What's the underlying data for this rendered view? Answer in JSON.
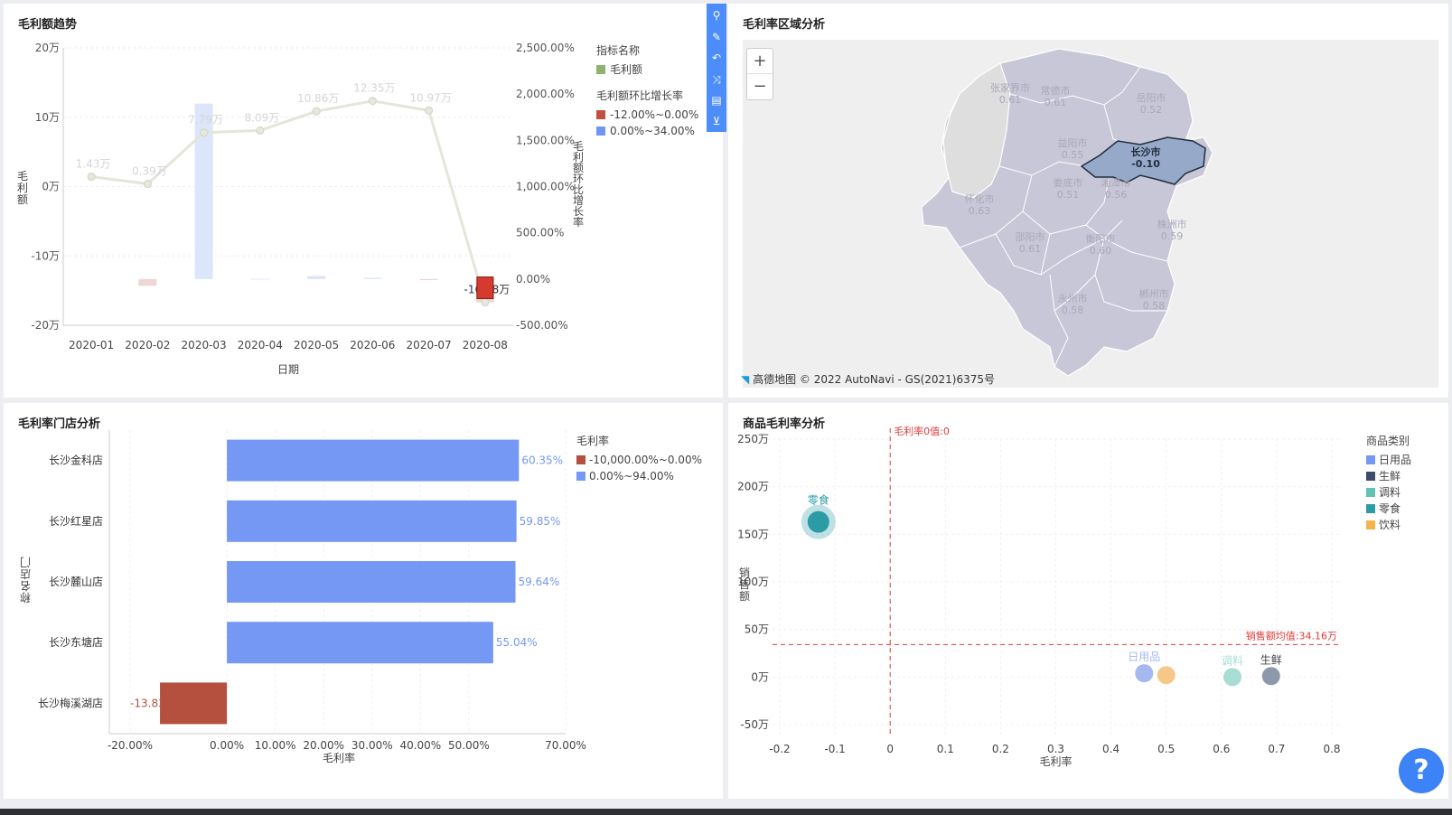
{
  "panels": {
    "gp_trend": {
      "title": "毛利额趋势"
    },
    "region": {
      "title": "毛利率区域分析"
    },
    "store": {
      "title": "毛利率门店分析"
    },
    "product": {
      "title": "商品毛利率分析"
    }
  },
  "toolbar": {
    "icons": [
      "link-off-icon",
      "edit-icon",
      "undo-icon",
      "shuffle-icon",
      "comment-icon",
      "collapse-icon"
    ]
  },
  "gp_chart": {
    "type": "bar+line",
    "xlabel": "日期",
    "ylabel_left": "毛利额",
    "ylabel_right": "毛利额环比增长率",
    "categories": [
      "2020-01",
      "2020-02",
      "2020-03",
      "2020-04",
      "2020-05",
      "2020-06",
      "2020-07",
      "2020-08"
    ],
    "gp_values": [
      1.43,
      0.39,
      7.79,
      8.09,
      10.86,
      12.35,
      10.97,
      -16.68
    ],
    "gp_labels": [
      "1.43万",
      "0.39万",
      "7.79万",
      "8.09万",
      "10.86万",
      "12.35万",
      "10.97万",
      "-16.68万"
    ],
    "growth_pct": [
      null,
      -72.7,
      1897.4,
      3.9,
      34.2,
      13.7,
      -11.2,
      -252.1
    ],
    "left_ticks": [
      "20万",
      "10万",
      "0万",
      "-10万",
      "-20万"
    ],
    "left_tick_values": [
      20,
      10,
      0,
      -10,
      -20
    ],
    "right_ticks": [
      "2,500.00%",
      "2,000.00%",
      "1,500.00%",
      "1,000.00%",
      "500.00%",
      "0.00%",
      "-500.00%"
    ],
    "right_tick_values": [
      2500,
      2000,
      1500,
      1000,
      500,
      0,
      -500
    ],
    "ylim_left": [
      -20,
      20
    ],
    "ylim_right": [
      -500,
      2500
    ],
    "legend_title": "指标名称",
    "legend_gp": "毛利额",
    "legend_growth_title": "毛利额环比增长率",
    "legend_neg": "-12.00%~0.00%",
    "legend_pos": "0.00%~34.00%",
    "colors": {
      "line": "#8db36f",
      "neg": "#c0503f",
      "pos": "#6f97f2"
    }
  },
  "map": {
    "zoom_in": "+",
    "zoom_out": "−",
    "attribution": "© 2022 AutoNavi - GS(2021)6375号",
    "brand": "高德地图",
    "cities": [
      {
        "name": "张家界市",
        "value": "0.61"
      },
      {
        "name": "常德市",
        "value": "0.61"
      },
      {
        "name": "岳阳市",
        "value": "0.52"
      },
      {
        "name": "益阳市",
        "value": "0.55"
      },
      {
        "name": "长沙市",
        "value": "-0.10"
      },
      {
        "name": "娄底市",
        "value": "0.51"
      },
      {
        "name": "湘潭市",
        "value": "0.56"
      },
      {
        "name": "怀化市",
        "value": "0.63"
      },
      {
        "name": "邵阳市",
        "value": "0.61"
      },
      {
        "name": "衡阳市",
        "value": "0.60"
      },
      {
        "name": "株洲市",
        "value": "0.59"
      },
      {
        "name": "永州市",
        "value": "0.58"
      },
      {
        "name": "郴州市",
        "value": "0.58"
      }
    ]
  },
  "store_chart": {
    "type": "bar",
    "xlabel": "毛利率",
    "ylabel": "门店名称",
    "stores": [
      "长沙金科店",
      "长沙红星店",
      "长沙麓山店",
      "长沙东塘店",
      "长沙梅溪湖店"
    ],
    "values": [
      60.35,
      59.85,
      59.64,
      55.04,
      -13.83
    ],
    "labels": [
      "60.35%",
      "59.85%",
      "59.64%",
      "55.04%",
      "-13.83"
    ],
    "xticks": [
      "-20.00%",
      "0.00%",
      "10.00%",
      "20.00%",
      "30.00%",
      "40.00%",
      "50.00%",
      "70.00%"
    ],
    "xtick_values": [
      -20,
      0,
      10,
      20,
      30,
      40,
      50,
      70
    ],
    "xlim": [
      -20,
      70
    ],
    "legend_title": "毛利率",
    "legend_neg": "-10,000.00%~0.00%",
    "legend_pos": "0.00%~94.00%",
    "colors": {
      "neg": "#b5503e",
      "pos": "#7498f3"
    }
  },
  "product_chart": {
    "type": "scatter",
    "xlabel": "毛利率",
    "ylabel": "销售额",
    "xticks": [
      "-0.2",
      "-0.1",
      "0",
      "0.1",
      "0.2",
      "0.3",
      "0.4",
      "0.5",
      "0.6",
      "0.7",
      "0.8"
    ],
    "xtick_values": [
      -0.2,
      -0.1,
      0,
      0.1,
      0.2,
      0.3,
      0.4,
      0.5,
      0.6,
      0.7,
      0.8
    ],
    "yticks": [
      "250万",
      "200万",
      "150万",
      "100万",
      "50万",
      "0万",
      "-50万"
    ],
    "ytick_values": [
      250,
      200,
      150,
      100,
      50,
      0,
      -50
    ],
    "xlim": [
      -0.2,
      0.8
    ],
    "ylim": [
      -50,
      250
    ],
    "zero_line_label": "毛利率0值:0",
    "avg_line_label": "销售额均值:34.16万",
    "avg_value": 34.16,
    "points": [
      {
        "name": "零食",
        "x": -0.13,
        "y": 163,
        "color": "#2b9ca6",
        "size": 1.7
      },
      {
        "name": "日用品",
        "x": 0.46,
        "y": 4,
        "color": "#a5b9f0",
        "size": 1
      },
      {
        "name": "",
        "x": 0.5,
        "y": 2,
        "color": "#f5c889",
        "size": 1
      },
      {
        "name": "调料",
        "x": 0.62,
        "y": 0,
        "color": "#a8dcd5",
        "size": 1
      },
      {
        "name": "生鲜",
        "x": 0.69,
        "y": 1,
        "color": "#8e98ab",
        "size": 1
      }
    ],
    "legend_title": "商品类别",
    "legend": [
      {
        "name": "日用品",
        "color": "#7498f3"
      },
      {
        "name": "生鲜",
        "color": "#3e4c6b"
      },
      {
        "name": "调料",
        "color": "#62c2b3"
      },
      {
        "name": "零食",
        "color": "#2b9ca6"
      },
      {
        "name": "饮料",
        "color": "#f5b34d"
      }
    ]
  },
  "help": {
    "label": "?"
  }
}
